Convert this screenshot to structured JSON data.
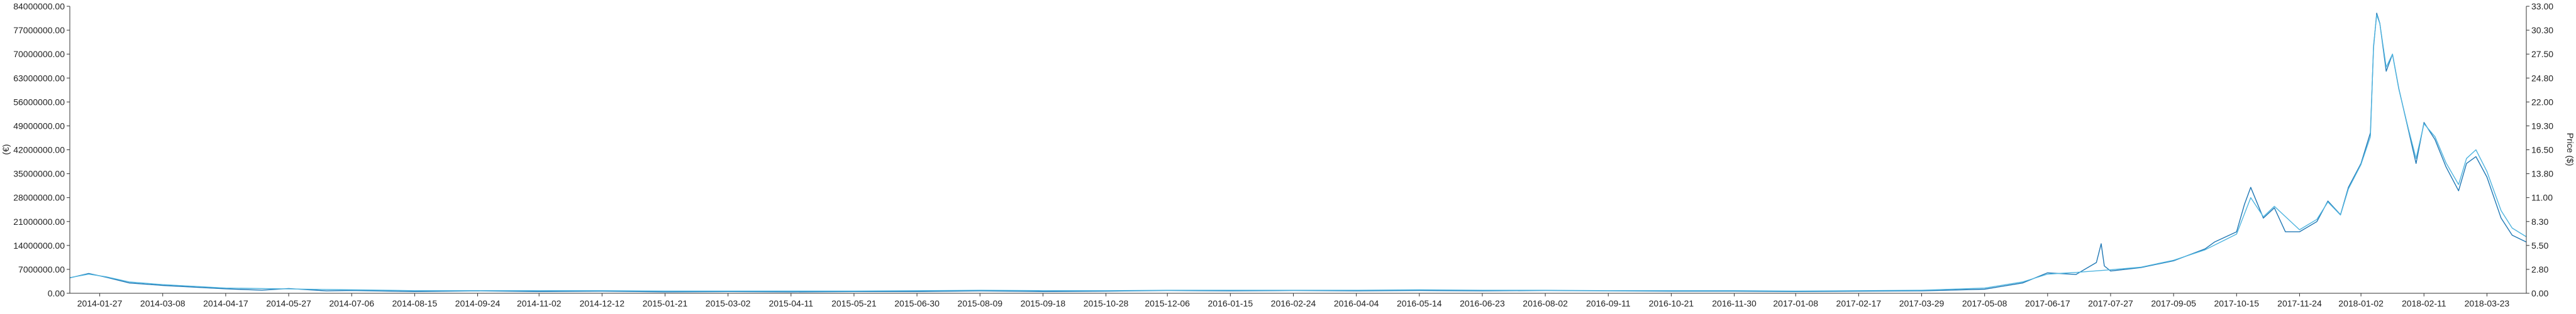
{
  "chart_data": {
    "type": "line",
    "title": "",
    "xlabel": "",
    "ylabel_left": "(€)",
    "ylabel_right": "Price ($)",
    "ylim_left": [
      0,
      84000000
    ],
    "ylim_right": [
      0,
      33
    ],
    "grid": false,
    "y_ticks_left": [
      "0.00",
      "7000000.00",
      "14000000.00",
      "21000000.00",
      "28000000.00",
      "35000000.00",
      "42000000.00",
      "49000000.00",
      "56000000.00",
      "63000000.00",
      "70000000.00",
      "77000000.00",
      "84000000.00"
    ],
    "y_ticks_right": [
      "0.00",
      "2.80",
      "5.50",
      "8.30",
      "11.00",
      "13.80",
      "16.50",
      "19.30",
      "22.00",
      "24.80",
      "27.50",
      "30.30",
      "33.00"
    ],
    "x_ticks": [
      "2014-01-27",
      "2014-03-08",
      "2014-04-17",
      "2014-05-27",
      "2014-07-06",
      "2014-08-15",
      "2014-09-24",
      "2014-11-02",
      "2014-12-12",
      "2015-01-21",
      "2015-03-02",
      "2015-04-11",
      "2015-05-21",
      "2015-06-30",
      "2015-08-09",
      "2015-09-18",
      "2015-10-28",
      "2015-12-06",
      "2016-01-15",
      "2016-02-24",
      "2016-04-04",
      "2016-05-14",
      "2016-06-23",
      "2016-08-02",
      "2016-09-11",
      "2016-10-21",
      "2016-11-30",
      "2017-01-08",
      "2017-02-17",
      "2017-03-29",
      "2017-05-08",
      "2017-06-17",
      "2017-07-27",
      "2017-09-05",
      "2017-10-15",
      "2017-11-24",
      "2018-01-02",
      "2018-02-11",
      "2018-03-23"
    ],
    "x_range": [
      "2014-01-08",
      "2018-04-17"
    ],
    "series": [
      {
        "axis": "left",
        "color": "#1f77b4",
        "points": [
          [
            "2014-01-08",
            4500000
          ],
          [
            "2014-01-20",
            5800000
          ],
          [
            "2014-01-31",
            4700000
          ],
          [
            "2014-02-15",
            3000000
          ],
          [
            "2014-03-08",
            2300000
          ],
          [
            "2014-04-17",
            1300000
          ],
          [
            "2014-05-10",
            900000
          ],
          [
            "2014-05-27",
            1400000
          ],
          [
            "2014-06-20",
            700000
          ],
          [
            "2014-07-06",
            800000
          ],
          [
            "2014-08-15",
            500000
          ],
          [
            "2014-09-24",
            700000
          ],
          [
            "2014-11-02",
            500000
          ],
          [
            "2014-12-12",
            600000
          ],
          [
            "2015-01-21",
            400000
          ],
          [
            "2015-03-02",
            500000
          ],
          [
            "2015-04-11",
            400000
          ],
          [
            "2015-05-21",
            500000
          ],
          [
            "2015-06-30",
            500000
          ],
          [
            "2015-08-09",
            700000
          ],
          [
            "2015-09-18",
            500000
          ],
          [
            "2015-10-28",
            600000
          ],
          [
            "2015-12-06",
            800000
          ],
          [
            "2016-01-15",
            700000
          ],
          [
            "2016-02-24",
            800000
          ],
          [
            "2016-04-04",
            700000
          ],
          [
            "2016-05-14",
            800000
          ],
          [
            "2016-06-23",
            700000
          ],
          [
            "2016-08-02",
            800000
          ],
          [
            "2016-09-11",
            700000
          ],
          [
            "2016-10-21",
            600000
          ],
          [
            "2016-11-30",
            600000
          ],
          [
            "2017-01-08",
            500000
          ],
          [
            "2017-02-17",
            600000
          ],
          [
            "2017-03-29",
            700000
          ],
          [
            "2017-05-08",
            1200000
          ],
          [
            "2017-06-01",
            3000000
          ],
          [
            "2017-06-17",
            6000000
          ],
          [
            "2017-07-05",
            5500000
          ],
          [
            "2017-07-18",
            9000000
          ],
          [
            "2017-07-21",
            14500000
          ],
          [
            "2017-07-23",
            8000000
          ],
          [
            "2017-07-27",
            6500000
          ],
          [
            "2017-08-15",
            7500000
          ],
          [
            "2017-09-05",
            9500000
          ],
          [
            "2017-09-25",
            13000000
          ],
          [
            "2017-10-01",
            15000000
          ],
          [
            "2017-10-15",
            18000000
          ],
          [
            "2017-10-20",
            26000000
          ],
          [
            "2017-10-24",
            31000000
          ],
          [
            "2017-11-01",
            22000000
          ],
          [
            "2017-11-08",
            25000000
          ],
          [
            "2017-11-15",
            18000000
          ],
          [
            "2017-11-24",
            18000000
          ],
          [
            "2017-12-05",
            21000000
          ],
          [
            "2017-12-12",
            27000000
          ],
          [
            "2017-12-20",
            23000000
          ],
          [
            "2017-12-25",
            31000000
          ],
          [
            "2018-01-02",
            38000000
          ],
          [
            "2018-01-08",
            47000000
          ],
          [
            "2018-01-10",
            72000000
          ],
          [
            "2018-01-12",
            82000000
          ],
          [
            "2018-01-14",
            79000000
          ],
          [
            "2018-01-18",
            65000000
          ],
          [
            "2018-01-22",
            70000000
          ],
          [
            "2018-01-26",
            60000000
          ],
          [
            "2018-02-01",
            48000000
          ],
          [
            "2018-02-06",
            38000000
          ],
          [
            "2018-02-11",
            50000000
          ],
          [
            "2018-02-18",
            45000000
          ],
          [
            "2018-02-25",
            37000000
          ],
          [
            "2018-03-05",
            30000000
          ],
          [
            "2018-03-10",
            38000000
          ],
          [
            "2018-03-16",
            40000000
          ],
          [
            "2018-03-23",
            34000000
          ],
          [
            "2018-04-01",
            22000000
          ],
          [
            "2018-04-08",
            17000000
          ],
          [
            "2018-04-17",
            15000000
          ]
        ]
      },
      {
        "axis": "right",
        "color": "#4fb4df",
        "points": [
          [
            "2014-01-08",
            1.8
          ],
          [
            "2014-01-20",
            2.2
          ],
          [
            "2014-01-31",
            1.9
          ],
          [
            "2014-02-15",
            1.3
          ],
          [
            "2014-03-08",
            1.0
          ],
          [
            "2014-04-17",
            0.6
          ],
          [
            "2014-05-27",
            0.5
          ],
          [
            "2014-07-06",
            0.4
          ],
          [
            "2014-08-15",
            0.3
          ],
          [
            "2014-09-24",
            0.3
          ],
          [
            "2014-11-02",
            0.3
          ],
          [
            "2014-12-12",
            0.3
          ],
          [
            "2015-01-21",
            0.25
          ],
          [
            "2015-03-02",
            0.25
          ],
          [
            "2015-04-11",
            0.25
          ],
          [
            "2015-05-21",
            0.25
          ],
          [
            "2015-06-30",
            0.3
          ],
          [
            "2015-08-09",
            0.35
          ],
          [
            "2015-09-18",
            0.3
          ],
          [
            "2015-10-28",
            0.3
          ],
          [
            "2015-12-06",
            0.35
          ],
          [
            "2016-01-15",
            0.35
          ],
          [
            "2016-02-24",
            0.35
          ],
          [
            "2016-04-04",
            0.35
          ],
          [
            "2016-05-14",
            0.4
          ],
          [
            "2016-06-23",
            0.35
          ],
          [
            "2016-08-02",
            0.35
          ],
          [
            "2016-09-11",
            0.3
          ],
          [
            "2016-10-21",
            0.3
          ],
          [
            "2016-11-30",
            0.3
          ],
          [
            "2017-01-08",
            0.25
          ],
          [
            "2017-02-17",
            0.3
          ],
          [
            "2017-03-29",
            0.35
          ],
          [
            "2017-05-08",
            0.6
          ],
          [
            "2017-06-01",
            1.3
          ],
          [
            "2017-06-17",
            2.2
          ],
          [
            "2017-07-05",
            2.4
          ],
          [
            "2017-07-27",
            2.7
          ],
          [
            "2017-08-15",
            3.0
          ],
          [
            "2017-09-05",
            3.8
          ],
          [
            "2017-09-25",
            5.0
          ],
          [
            "2017-10-15",
            6.8
          ],
          [
            "2017-10-24",
            11.0
          ],
          [
            "2017-11-01",
            8.8
          ],
          [
            "2017-11-08",
            10.0
          ],
          [
            "2017-11-24",
            7.3
          ],
          [
            "2017-12-05",
            8.5
          ],
          [
            "2017-12-12",
            10.5
          ],
          [
            "2017-12-20",
            9.0
          ],
          [
            "2017-12-25",
            12.0
          ],
          [
            "2018-01-02",
            14.8
          ],
          [
            "2018-01-08",
            18.0
          ],
          [
            "2018-01-10",
            28.5
          ],
          [
            "2018-01-12",
            32.0
          ],
          [
            "2018-01-14",
            31.0
          ],
          [
            "2018-01-18",
            26.0
          ],
          [
            "2018-01-22",
            27.5
          ],
          [
            "2018-01-26",
            23.5
          ],
          [
            "2018-02-01",
            19.0
          ],
          [
            "2018-02-06",
            15.5
          ],
          [
            "2018-02-11",
            19.5
          ],
          [
            "2018-02-18",
            18.0
          ],
          [
            "2018-02-25",
            15.0
          ],
          [
            "2018-03-05",
            12.5
          ],
          [
            "2018-03-10",
            15.5
          ],
          [
            "2018-03-16",
            16.5
          ],
          [
            "2018-03-23",
            14.0
          ],
          [
            "2018-04-01",
            9.5
          ],
          [
            "2018-04-08",
            7.5
          ],
          [
            "2018-04-17",
            6.5
          ]
        ]
      }
    ]
  }
}
